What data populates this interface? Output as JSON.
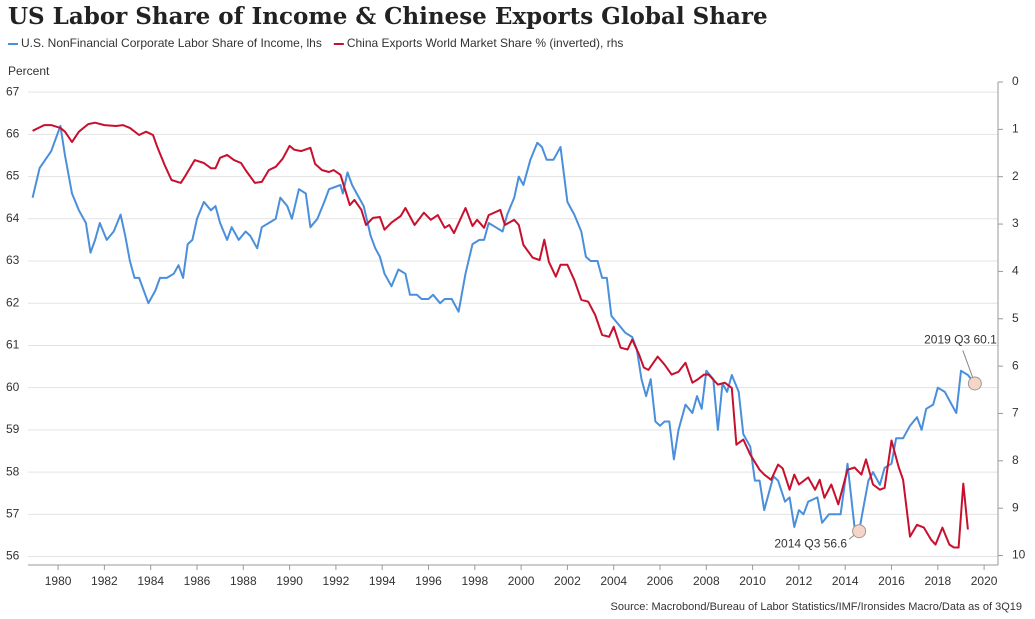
{
  "chart_data": {
    "type": "line",
    "title": "US Labor Share of Income & Chinese Exports Global Share",
    "ylabel": "Percent",
    "source": "Source: Macrobond/Bureau of Labor Statistics/IMF/Ironsides Macro/Data as of 3Q19",
    "xlim": [
      1978.7,
      2020.6
    ],
    "xticks": [
      1980,
      1982,
      1984,
      1986,
      1988,
      1990,
      1992,
      1994,
      1996,
      1998,
      2000,
      2002,
      2004,
      2006,
      2008,
      2010,
      2012,
      2014,
      2016,
      2018,
      2020
    ],
    "ylim": [
      55.8,
      67.24
    ],
    "yticks": [
      56,
      57,
      58,
      59,
      60,
      61,
      62,
      63,
      64,
      65,
      66,
      67
    ],
    "y2lim": [
      0,
      10.2
    ],
    "y2_inverted": true,
    "y2ticks": [
      0,
      1,
      2,
      3,
      4,
      5,
      6,
      7,
      8,
      9,
      10
    ],
    "grid": true,
    "series": [
      {
        "name": "U.S. NonFinancial Corporate Labor Share of Income, lhs",
        "color": "#4a8fdc",
        "axis": "y",
        "x": [
          1978.9,
          1979.2,
          1979.7,
          1980.1,
          1980.3,
          1980.6,
          1980.9,
          1981.2,
          1981.4,
          1981.6,
          1981.8,
          1982.1,
          1982.4,
          1982.7,
          1982.9,
          1983.1,
          1983.3,
          1983.5,
          1983.9,
          1984.2,
          1984.4,
          1984.7,
          1985.0,
          1985.2,
          1985.4,
          1985.6,
          1985.8,
          1986.0,
          1986.3,
          1986.6,
          1986.8,
          1987.0,
          1987.3,
          1987.5,
          1987.8,
          1988.1,
          1988.3,
          1988.6,
          1988.8,
          1989.1,
          1989.4,
          1989.6,
          1989.9,
          1990.1,
          1990.4,
          1990.7,
          1990.9,
          1991.2,
          1991.5,
          1991.7,
          1992.2,
          1992.3,
          1992.5,
          1992.7,
          1992.9,
          1993.2,
          1993.5,
          1993.7,
          1993.9,
          1994.1,
          1994.4,
          1994.7,
          1995.0,
          1995.2,
          1995.5,
          1995.7,
          1996.0,
          1996.2,
          1996.5,
          1996.7,
          1997.0,
          1997.3,
          1997.6,
          1997.9,
          1998.2,
          1998.4,
          1998.6,
          1998.9,
          1999.2,
          1999.4,
          1999.7,
          1999.9,
          2000.1,
          2000.4,
          2000.7,
          2000.9,
          2001.1,
          2001.4,
          2001.7,
          2002.0,
          2002.3,
          2002.6,
          2002.8,
          2003.0,
          2003.3,
          2003.5,
          2003.7,
          2003.9,
          2004.2,
          2004.5,
          2004.8,
          2005.0,
          2005.2,
          2005.4,
          2005.6,
          2005.8,
          2006.0,
          2006.2,
          2006.4,
          2006.6,
          2006.8,
          2007.1,
          2007.4,
          2007.6,
          2007.8,
          2008.0,
          2008.3,
          2008.5,
          2008.7,
          2008.9,
          2009.1,
          2009.4,
          2009.6,
          2009.9,
          2010.1,
          2010.3,
          2010.5,
          2010.7,
          2010.9,
          2011.1,
          2011.4,
          2011.6,
          2011.8,
          2012.0,
          2012.2,
          2012.4,
          2012.8,
          2013.0,
          2013.3,
          2013.5,
          2013.8,
          2014.1,
          2014.4,
          2014.6,
          2014.8,
          2015.0,
          2015.2,
          2015.5,
          2015.7,
          2016.0,
          2016.2,
          2016.5,
          2016.8,
          2017.1,
          2017.3,
          2017.5,
          2017.8,
          2018.0,
          2018.3,
          2018.6,
          2018.8,
          2019.0,
          2019.3,
          2019.6
        ],
        "values": [
          64.5,
          65.2,
          65.6,
          66.2,
          65.5,
          64.6,
          64.2,
          63.9,
          63.2,
          63.5,
          63.9,
          63.5,
          63.7,
          64.1,
          63.6,
          63.0,
          62.6,
          62.6,
          62.0,
          62.3,
          62.6,
          62.6,
          62.7,
          62.9,
          62.6,
          63.4,
          63.5,
          64.0,
          64.4,
          64.2,
          64.3,
          63.9,
          63.5,
          63.8,
          63.5,
          63.7,
          63.6,
          63.3,
          63.8,
          63.9,
          64.0,
          64.5,
          64.3,
          64.0,
          64.7,
          64.6,
          63.8,
          64.0,
          64.4,
          64.7,
          64.8,
          64.6,
          65.1,
          64.8,
          64.6,
          64.3,
          63.6,
          63.3,
          63.1,
          62.7,
          62.4,
          62.8,
          62.7,
          62.2,
          62.2,
          62.1,
          62.1,
          62.2,
          62.0,
          62.1,
          62.1,
          61.8,
          62.7,
          63.4,
          63.5,
          63.5,
          63.9,
          63.8,
          63.7,
          64.1,
          64.5,
          65.0,
          64.8,
          65.4,
          65.8,
          65.7,
          65.4,
          65.4,
          65.7,
          64.4,
          64.1,
          63.7,
          63.1,
          63.0,
          63.0,
          62.6,
          62.6,
          61.7,
          61.5,
          61.3,
          61.2,
          60.9,
          60.2,
          59.8,
          60.2,
          59.2,
          59.1,
          59.2,
          59.2,
          58.3,
          59.0,
          59.6,
          59.4,
          59.8,
          59.5,
          60.4,
          60.2,
          59.0,
          60.1,
          59.9,
          60.3,
          59.9,
          58.9,
          58.6,
          57.8,
          57.8,
          57.1,
          57.5,
          57.9,
          57.8,
          57.3,
          57.4,
          56.7,
          57.1,
          57.0,
          57.3,
          57.4,
          56.8,
          57.0,
          57.0,
          57.0,
          58.2,
          56.7,
          56.6,
          57.2,
          57.8,
          58.0,
          57.7,
          58.1,
          58.2,
          58.8,
          58.8,
          59.1,
          59.3,
          59.0,
          59.5,
          59.6,
          60.0,
          59.9,
          59.6,
          59.4,
          60.4,
          60.3,
          60.1
        ]
      },
      {
        "name": "China Exports World Market Share % (inverted), rhs",
        "color": "#c8102e",
        "axis": "y2",
        "x": [
          1978.9,
          1979.4,
          1979.7,
          1980.1,
          1980.3,
          1980.6,
          1980.9,
          1981.3,
          1981.6,
          1982.0,
          1982.5,
          1982.8,
          1983.1,
          1983.5,
          1983.8,
          1984.1,
          1984.3,
          1984.6,
          1984.9,
          1985.3,
          1985.5,
          1985.9,
          1986.3,
          1986.6,
          1986.8,
          1987.0,
          1987.3,
          1987.6,
          1987.9,
          1988.1,
          1988.5,
          1988.8,
          1989.1,
          1989.4,
          1989.7,
          1990.0,
          1990.2,
          1990.5,
          1990.9,
          1991.1,
          1991.4,
          1991.7,
          1991.9,
          1992.2,
          1992.6,
          1992.8,
          1993.1,
          1993.3,
          1993.6,
          1993.9,
          1994.1,
          1994.4,
          1994.8,
          1995.0,
          1995.4,
          1995.8,
          1996.1,
          1996.4,
          1996.7,
          1996.9,
          1997.1,
          1997.6,
          1997.9,
          1998.1,
          1998.4,
          1998.6,
          1999.1,
          1999.3,
          1999.7,
          1999.9,
          2000.1,
          2000.5,
          2000.8,
          2001.0,
          2001.2,
          2001.5,
          2001.7,
          2002.0,
          2002.3,
          2002.6,
          2002.9,
          2003.2,
          2003.5,
          2003.8,
          2004.0,
          2004.3,
          2004.6,
          2004.8,
          2005.1,
          2005.3,
          2005.5,
          2005.9,
          2006.2,
          2006.5,
          2006.8,
          2007.1,
          2007.4,
          2007.6,
          2007.9,
          2008.1,
          2008.5,
          2008.8,
          2009.1,
          2009.3,
          2009.6,
          2009.9,
          2010.3,
          2010.5,
          2010.8,
          2011.1,
          2011.3,
          2011.6,
          2011.8,
          2012.0,
          2012.4,
          2012.7,
          2012.9,
          2013.1,
          2013.4,
          2013.7,
          2014.1,
          2014.4,
          2014.7,
          2014.9,
          2015.2,
          2015.5,
          2015.7,
          2016.0,
          2016.3,
          2016.5,
          2016.8,
          2017.1,
          2017.4,
          2017.7,
          2017.9,
          2018.2,
          2018.5,
          2018.7,
          2018.9,
          2019.1,
          2019.3
        ],
        "values": [
          1.03,
          0.91,
          0.91,
          0.97,
          1.05,
          1.27,
          1.05,
          0.89,
          0.86,
          0.91,
          0.93,
          0.91,
          0.97,
          1.12,
          1.05,
          1.12,
          1.39,
          1.75,
          2.07,
          2.13,
          1.98,
          1.65,
          1.71,
          1.82,
          1.82,
          1.6,
          1.54,
          1.65,
          1.71,
          1.86,
          2.13,
          2.11,
          1.86,
          1.79,
          1.62,
          1.35,
          1.43,
          1.46,
          1.39,
          1.73,
          1.86,
          1.9,
          1.86,
          1.96,
          2.6,
          2.49,
          2.7,
          3.02,
          2.87,
          2.85,
          3.12,
          2.97,
          2.83,
          2.66,
          3.02,
          2.76,
          2.91,
          2.81,
          3.08,
          3.02,
          3.19,
          2.66,
          3.04,
          2.91,
          3.08,
          2.81,
          2.7,
          3.02,
          2.91,
          3.02,
          3.44,
          3.71,
          3.76,
          3.33,
          3.8,
          4.11,
          3.86,
          3.86,
          4.18,
          4.6,
          4.64,
          4.92,
          5.34,
          5.38,
          5.17,
          5.61,
          5.65,
          5.44,
          5.76,
          6.03,
          6.08,
          5.8,
          5.97,
          6.18,
          6.12,
          5.93,
          6.35,
          6.29,
          6.18,
          6.18,
          6.39,
          6.35,
          6.46,
          7.66,
          7.55,
          7.87,
          8.19,
          8.29,
          8.4,
          8.08,
          8.16,
          8.61,
          8.29,
          8.5,
          8.35,
          8.61,
          8.4,
          8.78,
          8.5,
          8.92,
          8.19,
          8.14,
          8.29,
          7.97,
          8.5,
          8.61,
          8.57,
          7.57,
          8.12,
          8.4,
          9.6,
          9.35,
          9.41,
          9.66,
          9.77,
          9.41,
          9.77,
          9.83,
          9.83,
          8.48,
          9.45
        ]
      }
    ],
    "annotations": [
      {
        "text": "2019 Q3 60.1",
        "x": 2019.6,
        "y": 60.1
      },
      {
        "text": "2014 Q3 56.6",
        "x": 2014.6,
        "y": 56.6
      }
    ]
  }
}
